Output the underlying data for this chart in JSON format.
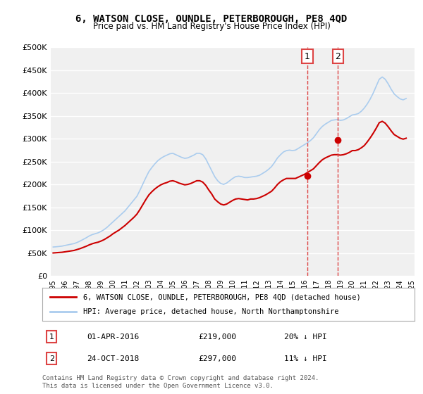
{
  "title": "6, WATSON CLOSE, OUNDLE, PETERBOROUGH, PE8 4QD",
  "subtitle": "Price paid vs. HM Land Registry's House Price Index (HPI)",
  "xlabel": "",
  "ylabel": "",
  "ylim": [
    0,
    500000
  ],
  "yticks": [
    0,
    50000,
    100000,
    150000,
    200000,
    250000,
    300000,
    350000,
    400000,
    450000,
    500000
  ],
  "ytick_labels": [
    "£0",
    "£50K",
    "£100K",
    "£150K",
    "£200K",
    "£250K",
    "£300K",
    "£350K",
    "£400K",
    "£450K",
    "£500K"
  ],
  "background_color": "#ffffff",
  "plot_bg_color": "#f0f0f0",
  "grid_color": "#ffffff",
  "red_line_color": "#cc0000",
  "blue_line_color": "#aaccee",
  "marker_color_red": "#cc0000",
  "marker_color_blue": "#5588aa",
  "dashed_line_color": "#dd4444",
  "legend_label_red": "6, WATSON CLOSE, OUNDLE, PETERBOROUGH, PE8 4QD (detached house)",
  "legend_label_blue": "HPI: Average price, detached house, North Northamptonshire",
  "transaction1_label": "1",
  "transaction1_date": "01-APR-2016",
  "transaction1_price": "£219,000",
  "transaction1_hpi": "20% ↓ HPI",
  "transaction1_x": 2016.25,
  "transaction1_y": 219000,
  "transaction2_label": "2",
  "transaction2_date": "24-OCT-2018",
  "transaction2_price": "£297,000",
  "transaction2_hpi": "11% ↓ HPI",
  "transaction2_x": 2018.8,
  "transaction2_y": 297000,
  "footnote": "Contains HM Land Registry data © Crown copyright and database right 2024.\nThis data is licensed under the Open Government Licence v3.0.",
  "hpi_years": [
    1995,
    1995.25,
    1995.5,
    1995.75,
    1996,
    1996.25,
    1996.5,
    1996.75,
    1997,
    1997.25,
    1997.5,
    1997.75,
    1998,
    1998.25,
    1998.5,
    1998.75,
    1999,
    1999.25,
    1999.5,
    1999.75,
    2000,
    2000.25,
    2000.5,
    2000.75,
    2001,
    2001.25,
    2001.5,
    2001.75,
    2002,
    2002.25,
    2002.5,
    2002.75,
    2003,
    2003.25,
    2003.5,
    2003.75,
    2004,
    2004.25,
    2004.5,
    2004.75,
    2005,
    2005.25,
    2005.5,
    2005.75,
    2006,
    2006.25,
    2006.5,
    2006.75,
    2007,
    2007.25,
    2007.5,
    2007.75,
    2008,
    2008.25,
    2008.5,
    2008.75,
    2009,
    2009.25,
    2009.5,
    2009.75,
    2010,
    2010.25,
    2010.5,
    2010.75,
    2011,
    2011.25,
    2011.5,
    2011.75,
    2012,
    2012.25,
    2012.5,
    2012.75,
    2013,
    2013.25,
    2013.5,
    2013.75,
    2014,
    2014.25,
    2014.5,
    2014.75,
    2015,
    2015.25,
    2015.5,
    2015.75,
    2016,
    2016.25,
    2016.5,
    2016.75,
    2017,
    2017.25,
    2017.5,
    2017.75,
    2018,
    2018.25,
    2018.5,
    2018.75,
    2019,
    2019.25,
    2019.5,
    2019.75,
    2020,
    2020.25,
    2020.5,
    2020.75,
    2021,
    2021.25,
    2021.5,
    2021.75,
    2022,
    2022.25,
    2022.5,
    2022.75,
    2023,
    2023.25,
    2023.5,
    2023.75,
    2024,
    2024.25,
    2024.5
  ],
  "hpi_values": [
    63000,
    63500,
    64200,
    65000,
    66500,
    67800,
    69200,
    70500,
    73000,
    76000,
    79500,
    83000,
    87000,
    90000,
    92000,
    94000,
    97000,
    101000,
    106000,
    112000,
    118000,
    124000,
    130000,
    136000,
    142000,
    150000,
    158000,
    166000,
    174000,
    187000,
    201000,
    215000,
    228000,
    237000,
    245000,
    252000,
    257000,
    261000,
    264000,
    267000,
    268000,
    265000,
    262000,
    259000,
    257000,
    258000,
    261000,
    264000,
    268000,
    268000,
    265000,
    256000,
    243000,
    230000,
    217000,
    208000,
    202000,
    200000,
    203000,
    208000,
    213000,
    217000,
    218000,
    217000,
    215000,
    215000,
    216000,
    217000,
    218000,
    220000,
    224000,
    228000,
    233000,
    239000,
    248000,
    258000,
    265000,
    271000,
    274000,
    275000,
    274000,
    275000,
    279000,
    283000,
    287000,
    291000,
    296000,
    302000,
    311000,
    320000,
    327000,
    332000,
    336000,
    340000,
    341000,
    342000,
    340000,
    341000,
    344000,
    348000,
    352000,
    353000,
    355000,
    360000,
    367000,
    376000,
    387000,
    400000,
    415000,
    430000,
    435000,
    430000,
    420000,
    408000,
    398000,
    392000,
    387000,
    385000,
    388000
  ],
  "red_years": [
    1995,
    1995.25,
    1995.5,
    1995.75,
    1996,
    1996.25,
    1996.5,
    1996.75,
    1997,
    1997.25,
    1997.5,
    1997.75,
    1998,
    1998.25,
    1998.5,
    1998.75,
    1999,
    1999.25,
    1999.5,
    1999.75,
    2000,
    2000.25,
    2000.5,
    2000.75,
    2001,
    2001.25,
    2001.5,
    2001.75,
    2002,
    2002.25,
    2002.5,
    2002.75,
    2003,
    2003.25,
    2003.5,
    2003.75,
    2004,
    2004.25,
    2004.5,
    2004.75,
    2005,
    2005.25,
    2005.5,
    2005.75,
    2006,
    2006.25,
    2006.5,
    2006.75,
    2007,
    2007.25,
    2007.5,
    2007.75,
    2008,
    2008.25,
    2008.5,
    2008.75,
    2009,
    2009.25,
    2009.5,
    2009.75,
    2010,
    2010.25,
    2010.5,
    2010.75,
    2011,
    2011.25,
    2011.5,
    2011.75,
    2012,
    2012.25,
    2012.5,
    2012.75,
    2013,
    2013.25,
    2013.5,
    2013.75,
    2014,
    2014.25,
    2014.5,
    2014.75,
    2015,
    2015.25,
    2015.5,
    2015.75,
    2016,
    2016.25,
    2016.5,
    2016.75,
    2017,
    2017.25,
    2017.5,
    2017.75,
    2018,
    2018.25,
    2018.5,
    2018.75,
    2019,
    2019.25,
    2019.5,
    2019.75,
    2020,
    2020.25,
    2020.5,
    2020.75,
    2021,
    2021.25,
    2021.5,
    2021.75,
    2022,
    2022.25,
    2022.5,
    2022.75,
    2023,
    2023.25,
    2023.5,
    2023.75,
    2024,
    2024.25,
    2024.5
  ],
  "red_values": [
    50000,
    50500,
    51000,
    51500,
    52500,
    53500,
    54500,
    55500,
    57500,
    59500,
    62000,
    64500,
    67500,
    70000,
    72000,
    73500,
    76000,
    79000,
    83000,
    87000,
    92000,
    96000,
    100000,
    105000,
    110000,
    116000,
    122000,
    128000,
    135000,
    145000,
    156000,
    167000,
    177000,
    184000,
    190000,
    195000,
    199000,
    202000,
    204000,
    207000,
    208000,
    206000,
    203000,
    201000,
    199000,
    200000,
    202000,
    205000,
    208000,
    208000,
    205000,
    198000,
    188000,
    179000,
    168000,
    162000,
    157000,
    155000,
    157000,
    161000,
    165000,
    168000,
    169000,
    168000,
    167000,
    166000,
    168000,
    168000,
    169000,
    171000,
    174000,
    177000,
    181000,
    185000,
    192000,
    200000,
    206000,
    210000,
    213000,
    213000,
    213000,
    213000,
    216000,
    219000,
    222000,
    226000,
    230000,
    234000,
    241000,
    248000,
    254000,
    258000,
    261000,
    264000,
    265000,
    265000,
    264000,
    265000,
    267000,
    270000,
    274000,
    274000,
    276000,
    280000,
    285000,
    293000,
    302000,
    312000,
    323000,
    335000,
    338000,
    334000,
    326000,
    317000,
    309000,
    305000,
    301000,
    299000,
    301000
  ],
  "xticks": [
    1995,
    1996,
    1997,
    1998,
    1999,
    2000,
    2001,
    2002,
    2003,
    2004,
    2005,
    2006,
    2007,
    2008,
    2009,
    2010,
    2011,
    2012,
    2013,
    2014,
    2015,
    2016,
    2017,
    2018,
    2019,
    2020,
    2021,
    2022,
    2023,
    2024,
    2025
  ],
  "xlim": [
    1994.8,
    2025.2
  ]
}
